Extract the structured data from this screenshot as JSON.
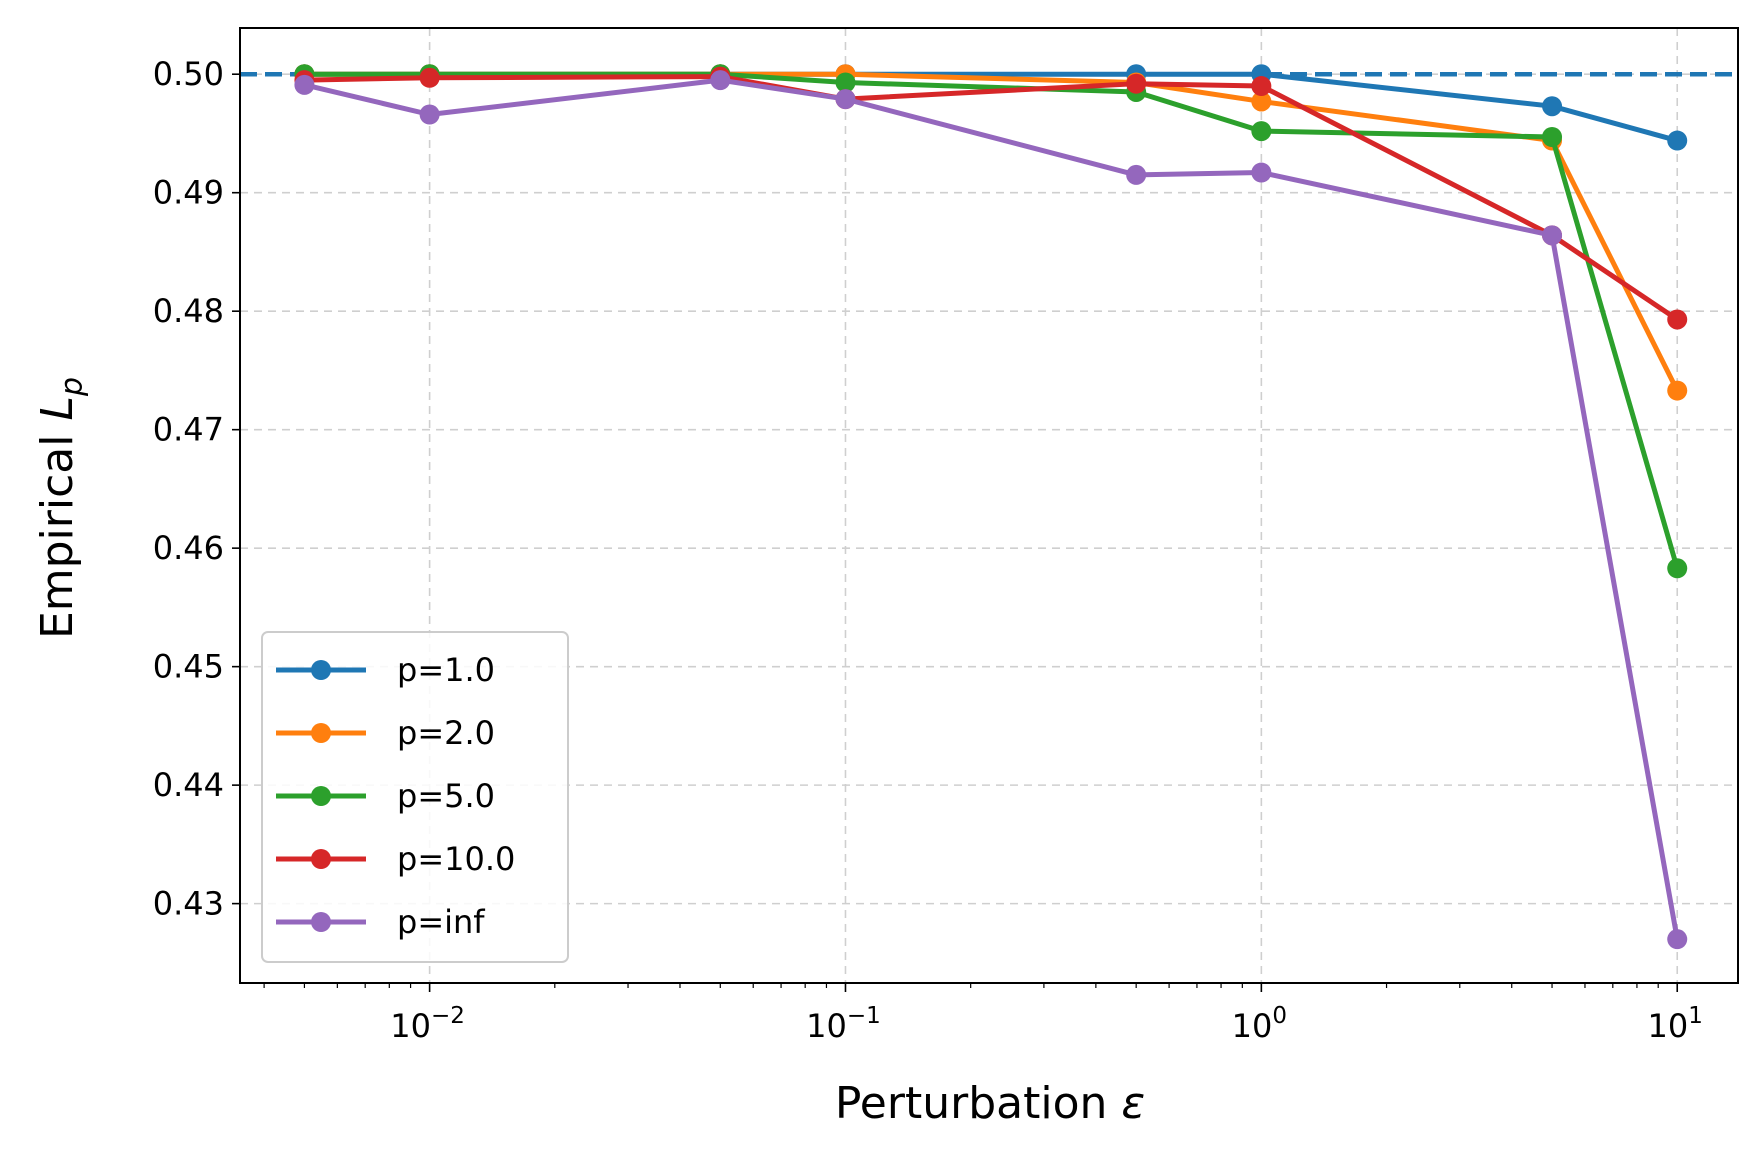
{
  "chart_data": {
    "type": "line",
    "title": "",
    "xlabel": "Perturbation ε",
    "ylabel": "Empirical L_p",
    "ylabel_main": "Empirical ",
    "ylabel_var": "L",
    "ylabel_sub": "p",
    "xlabel_main": "Perturbation ",
    "xlabel_var": "ε",
    "xscale": "log",
    "xlim": [
      0.0035,
      14
    ],
    "ylim": [
      0.4233,
      0.5039
    ],
    "x": [
      0.005,
      0.01,
      0.05,
      0.1,
      0.5,
      1,
      5,
      10
    ],
    "x_ticks": [
      {
        "value": 0.01,
        "base": "10",
        "exp": "−2"
      },
      {
        "value": 0.1,
        "base": "10",
        "exp": "−1"
      },
      {
        "value": 1,
        "base": "10",
        "exp": "0"
      },
      {
        "value": 10,
        "base": "10",
        "exp": "1"
      }
    ],
    "y_ticks": [
      {
        "value": 0.43,
        "label": "0.43"
      },
      {
        "value": 0.44,
        "label": "0.44"
      },
      {
        "value": 0.45,
        "label": "0.45"
      },
      {
        "value": 0.46,
        "label": "0.46"
      },
      {
        "value": 0.47,
        "label": "0.47"
      },
      {
        "value": 0.48,
        "label": "0.48"
      },
      {
        "value": 0.49,
        "label": "0.49"
      },
      {
        "value": 0.5,
        "label": "0.50"
      }
    ],
    "grid": true,
    "reference_line": {
      "y": 0.5,
      "color": "#1f77b4",
      "style": "dashed"
    },
    "legend_position": "lower-left",
    "series": [
      {
        "name": "p=1.0",
        "color": "#1f77b4",
        "values": [
          0.5,
          0.5,
          0.5,
          0.5,
          0.5,
          0.5,
          0.4973,
          0.4944
        ]
      },
      {
        "name": "p=2.0",
        "color": "#ff7f0e",
        "values": [
          0.5,
          0.5,
          0.5,
          0.5,
          0.4993,
          0.4977,
          0.4944,
          0.4733
        ]
      },
      {
        "name": "p=5.0",
        "color": "#2ca02c",
        "values": [
          0.5,
          0.5,
          0.5,
          0.4993,
          0.4985,
          0.4952,
          0.4947,
          0.4583
        ]
      },
      {
        "name": "p=10.0",
        "color": "#d62728",
        "values": [
          0.4995,
          0.4997,
          0.4998,
          0.4979,
          0.4992,
          0.499,
          0.4864,
          0.4793
        ]
      },
      {
        "name": "p=inf",
        "color": "#9467bd",
        "values": [
          0.4991,
          0.4966,
          0.4995,
          0.4979,
          0.4915,
          0.4917,
          0.4864,
          0.427
        ]
      }
    ]
  }
}
